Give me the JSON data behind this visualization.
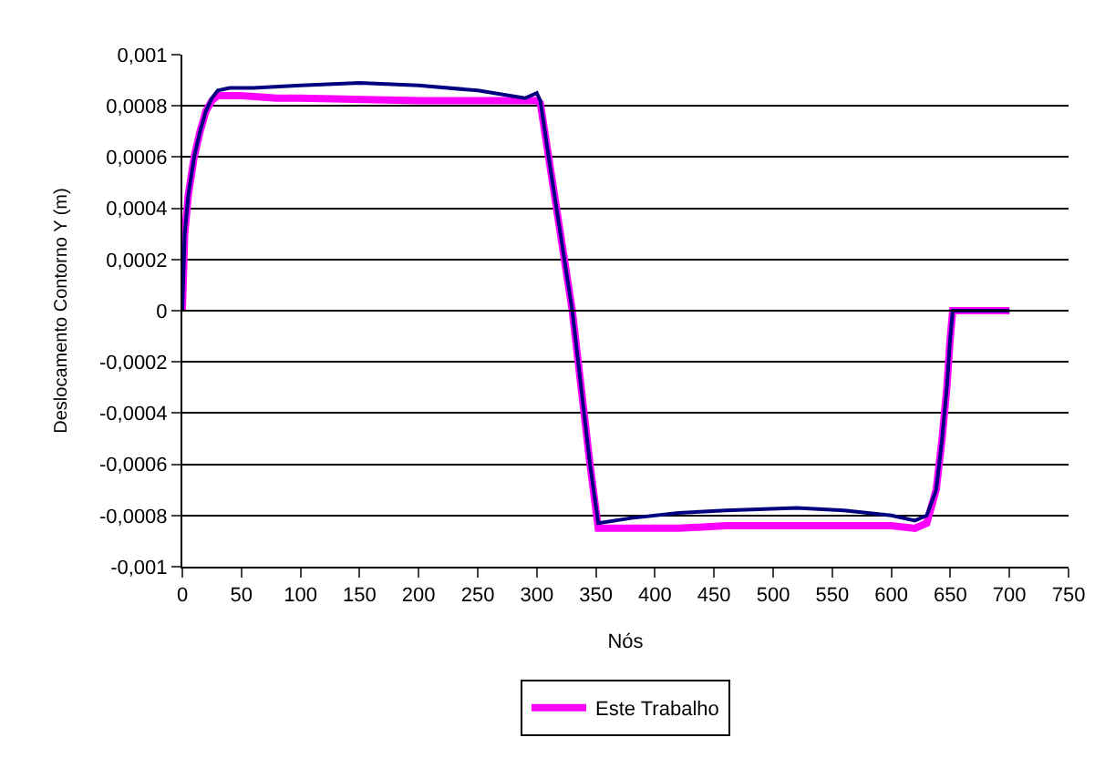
{
  "chart_data": {
    "type": "line",
    "xlabel": "Nós",
    "ylabel": "Deslocamento Contorno Y (m)",
    "xlim": [
      0,
      750
    ],
    "xticks": [
      0,
      50,
      100,
      150,
      200,
      250,
      300,
      350,
      400,
      450,
      500,
      550,
      600,
      650,
      700,
      750
    ],
    "ylim": [
      -0.001,
      0.001
    ],
    "yticks": [
      {
        "value": -0.001,
        "label": "-0,001"
      },
      {
        "value": -0.0008,
        "label": "-0,0008"
      },
      {
        "value": -0.0006,
        "label": "-0,0006"
      },
      {
        "value": -0.0004,
        "label": "-0,0004"
      },
      {
        "value": -0.0002,
        "label": "-0,0002"
      },
      {
        "value": 0,
        "label": "0"
      },
      {
        "value": 0.0002,
        "label": "0,0002"
      },
      {
        "value": 0.0004,
        "label": "0,0004"
      },
      {
        "value": 0.0006,
        "label": "0,0006"
      },
      {
        "value": 0.0008,
        "label": "0,0008"
      },
      {
        "value": 0.001,
        "label": "0,001"
      }
    ],
    "grid": "y",
    "legend": "bottom",
    "marker": "none",
    "line_style": "solid",
    "series": [
      {
        "color": "#000080",
        "x": [
          0,
          2,
          5,
          10,
          15,
          20,
          25,
          30,
          40,
          60,
          100,
          150,
          200,
          250,
          290,
          300,
          303,
          310,
          320,
          330,
          340,
          345,
          352,
          380,
          420,
          460,
          520,
          560,
          600,
          620,
          630,
          638,
          643,
          647,
          650,
          652,
          700
        ],
        "values": [
          0,
          0.0003,
          0.00045,
          0.0006,
          0.0007,
          0.00078,
          0.00083,
          0.00086,
          0.00087,
          0.00087,
          0.00088,
          0.00089,
          0.00088,
          0.00086,
          0.00083,
          0.00085,
          0.00082,
          0.0006,
          0.0003,
          0,
          -0.0004,
          -0.0006,
          -0.00083,
          -0.00081,
          -0.00079,
          -0.00078,
          -0.00077,
          -0.00078,
          -0.0008,
          -0.00082,
          -0.0008,
          -0.0007,
          -0.0005,
          -0.0003,
          -0.0001,
          0,
          0
        ]
      },
      {
        "name": "Este Trabalho",
        "color": "#ff00ff",
        "x": [
          0,
          2,
          5,
          10,
          15,
          20,
          25,
          30,
          50,
          80,
          100,
          200,
          250,
          300,
          303,
          310,
          320,
          330,
          340,
          345,
          352,
          380,
          420,
          460,
          520,
          560,
          600,
          620,
          630,
          638,
          643,
          647,
          650,
          652,
          700
        ],
        "values": [
          0,
          0.0003,
          0.00045,
          0.0006,
          0.0007,
          0.00078,
          0.00082,
          0.00084,
          0.00084,
          0.00083,
          0.00083,
          0.00082,
          0.00082,
          0.00082,
          0.00081,
          0.0006,
          0.0003,
          0,
          -0.0004,
          -0.0006,
          -0.00085,
          -0.00085,
          -0.00085,
          -0.00084,
          -0.00084,
          -0.00084,
          -0.00084,
          -0.00085,
          -0.00083,
          -0.0007,
          -0.0005,
          -0.0003,
          -0.0001,
          0,
          0
        ]
      }
    ]
  }
}
